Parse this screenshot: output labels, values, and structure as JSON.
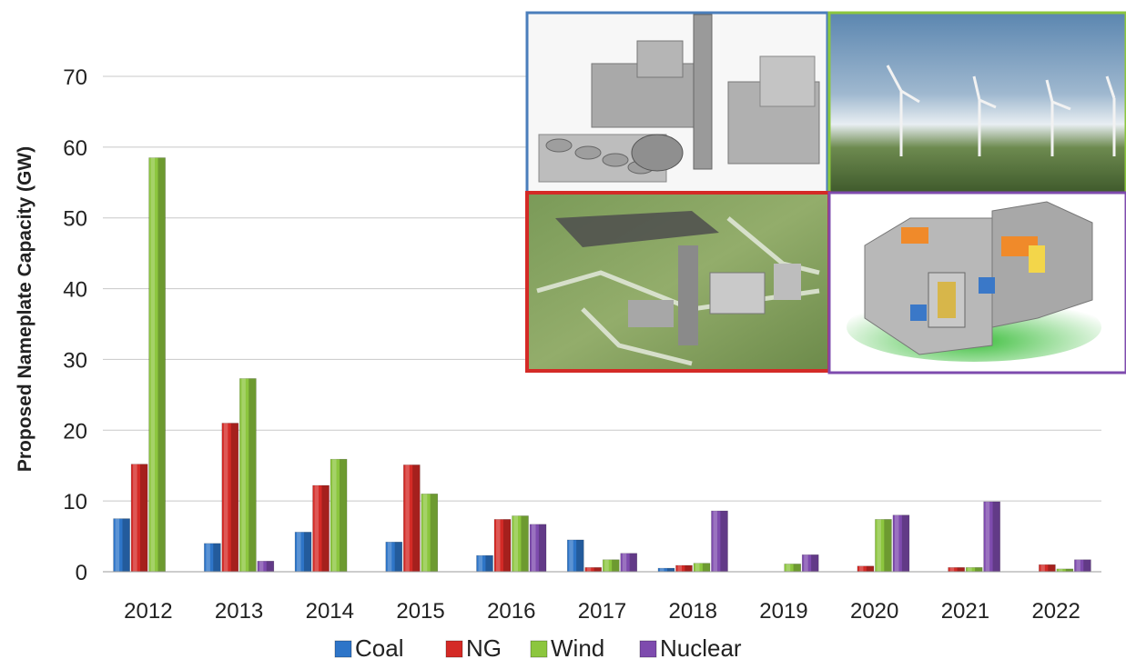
{
  "chart_data": {
    "type": "bar",
    "ylabel": "Proposed Nameplate Capacity (GW)",
    "ylim": [
      0,
      70
    ],
    "yticks": [
      0,
      10,
      20,
      30,
      40,
      50,
      60,
      70
    ],
    "grid": true,
    "legend_position": "bottom",
    "categories": [
      "2012",
      "2013",
      "2014",
      "2015",
      "2016",
      "2017",
      "2018",
      "2019",
      "2020",
      "2021",
      "2022"
    ],
    "series": [
      {
        "name": "Coal",
        "color": "#2E75C8",
        "values": [
          7.5,
          4.0,
          5.6,
          4.2,
          2.3,
          4.5,
          0.5,
          0,
          0,
          0,
          0
        ]
      },
      {
        "name": "NG",
        "color": "#D42A26",
        "values": [
          15.2,
          21.0,
          12.2,
          15.1,
          7.4,
          0.6,
          0.9,
          0,
          0.8,
          0.6,
          1.0
        ]
      },
      {
        "name": "Wind",
        "color": "#8CC63E",
        "values": [
          58.5,
          27.3,
          15.9,
          11.0,
          7.9,
          1.7,
          1.2,
          1.1,
          7.4,
          0.6,
          0.4
        ]
      },
      {
        "name": "Nuclear",
        "color": "#7E4BAE",
        "values": [
          0,
          1.5,
          0,
          0,
          6.7,
          2.6,
          8.6,
          2.4,
          8.0,
          9.9,
          1.7
        ]
      }
    ],
    "inset_images": [
      {
        "name": "gas-turbine-plant-image",
        "border": "#4A7EBB"
      },
      {
        "name": "wind-farm-image",
        "border": "#8CC63E"
      },
      {
        "name": "coal-plant-aerial-image",
        "border": "#D42A26"
      },
      {
        "name": "nuclear-reactor-cutaway-image",
        "border": "#7E4BAE"
      }
    ]
  }
}
